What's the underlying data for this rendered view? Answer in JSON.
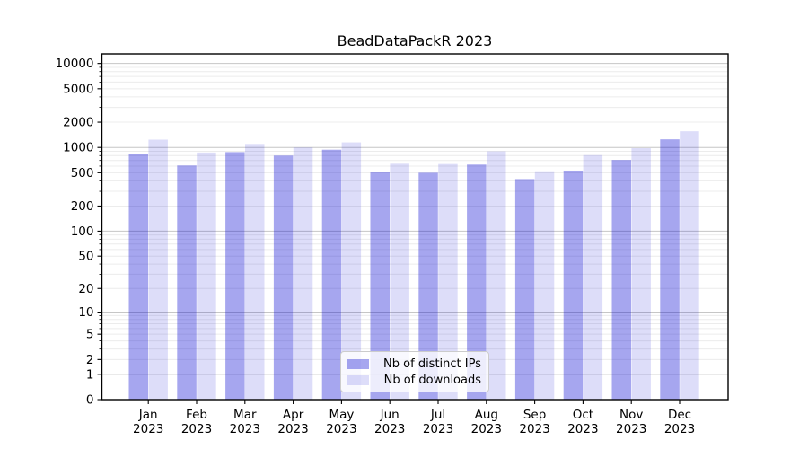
{
  "chart_data": {
    "type": "bar",
    "title": "BeadDataPackR 2023",
    "categories": [
      "Jan 2023",
      "Feb 2023",
      "Mar 2023",
      "Apr 2023",
      "May 2023",
      "Jun 2023",
      "Jul 2023",
      "Aug 2023",
      "Sep 2023",
      "Oct 2023",
      "Nov 2023",
      "Dec 2023"
    ],
    "series": [
      {
        "name": "Nb of distinct IPs",
        "values": [
          845,
          610,
          880,
          800,
          940,
          510,
          500,
          625,
          420,
          530,
          710,
          1250
        ],
        "alpha": 0.35
      },
      {
        "name": "Nb of downloads",
        "values": [
          1240,
          870,
          1100,
          1000,
          1150,
          640,
          635,
          900,
          520,
          810,
          980,
          1560
        ],
        "alpha": 0.135
      }
    ],
    "xlabel": "",
    "ylabel": "",
    "yscale": "log10(1+v)",
    "ylim": [
      0,
      13000
    ],
    "grid": true,
    "legend_position": "lower center",
    "y_tick_values": [
      10000,
      5000,
      2000,
      1000,
      500,
      200,
      100,
      50,
      20,
      10,
      5,
      2,
      1,
      0
    ],
    "y_tick_labels": [
      "10000",
      "5000",
      "2000",
      "1000",
      "500",
      "200",
      "100",
      "50",
      "20",
      "10",
      "5",
      "2",
      "1",
      "0"
    ],
    "x_tick_line1": [
      "Jan",
      "Feb",
      "Mar",
      "Apr",
      "May",
      "Jun",
      "Jul",
      "Aug",
      "Sep",
      "Oct",
      "Nov",
      "Dec"
    ],
    "x_tick_line2": "2023"
  },
  "colors": {
    "bar_base": "rgb(0,0,210)",
    "ips_fill_on_white": "#a6a6f4",
    "downloads_fill_on_white": "#dadaf8",
    "grid_major": "#c6c6c6",
    "grid_minor": "#ececec",
    "axis": "#000000",
    "tick_label": "#000000",
    "background": "#ffffff",
    "legend_border": "#cccccc"
  }
}
